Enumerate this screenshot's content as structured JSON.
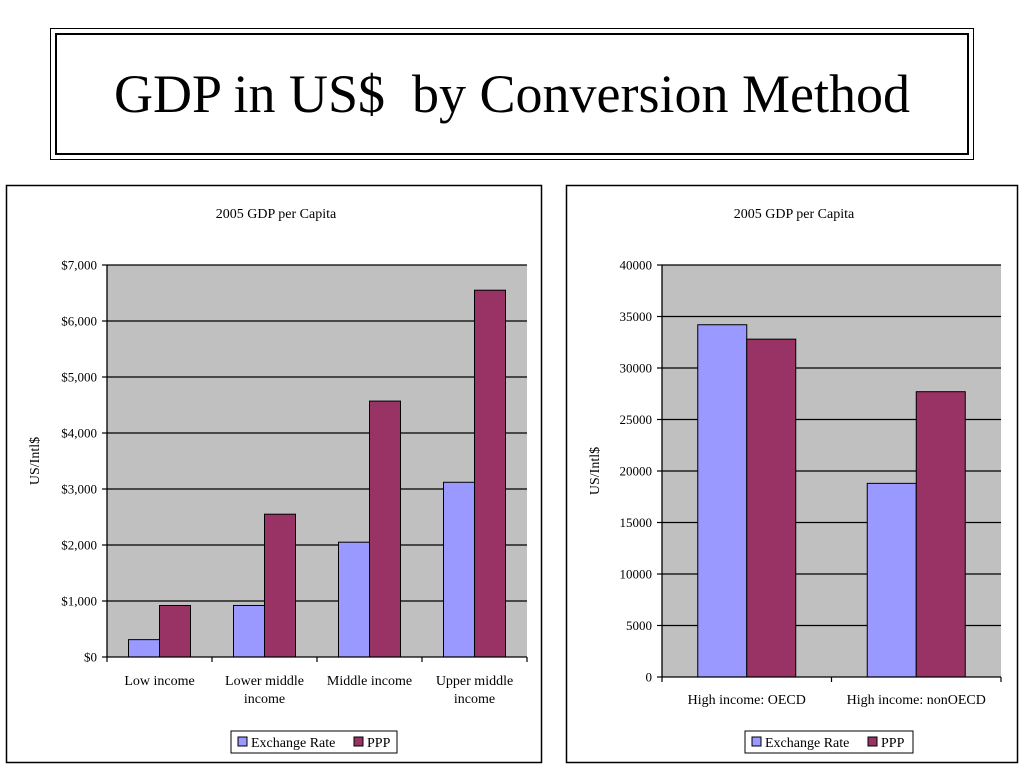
{
  "slide": {
    "title": "GDP in US$  by Conversion Method"
  },
  "colors": {
    "exchange_rate": "#9999ff",
    "ppp": "#993366",
    "plot_bg": "#c0c0c0"
  },
  "chart_data": [
    {
      "type": "bar",
      "title": "2005 GDP per Capita",
      "xlabel": "",
      "ylabel": "US/Intl$",
      "categories": [
        [
          "Low income"
        ],
        [
          "Lower middle",
          "income"
        ],
        [
          "Middle income"
        ],
        [
          "Upper middle",
          "income"
        ]
      ],
      "series": [
        {
          "name": "Exchange Rate",
          "values": [
            310,
            920,
            2050,
            3120
          ]
        },
        {
          "name": "PPP",
          "values": [
            920,
            2550,
            4570,
            6550
          ]
        }
      ],
      "ylim": [
        0,
        7000
      ],
      "yticks": [
        0,
        1000,
        2000,
        3000,
        4000,
        5000,
        6000,
        7000
      ],
      "ytick_labels": [
        "$0",
        "$1,000",
        "$2,000",
        "$3,000",
        "$4,000",
        "$5,000",
        "$6,000",
        "$7,000"
      ],
      "grid": true,
      "legend": "bottom"
    },
    {
      "type": "bar",
      "title": "2005 GDP per Capita",
      "xlabel": "",
      "ylabel": "US/Intl$",
      "categories": [
        [
          "High income: OECD"
        ],
        [
          "High income: nonOECD"
        ]
      ],
      "series": [
        {
          "name": "Exchange Rate",
          "values": [
            34200,
            18800
          ]
        },
        {
          "name": "PPP",
          "values": [
            32800,
            27700
          ]
        }
      ],
      "ylim": [
        0,
        40000
      ],
      "yticks": [
        0,
        5000,
        10000,
        15000,
        20000,
        25000,
        30000,
        35000,
        40000
      ],
      "ytick_labels": [
        "0",
        "5000",
        "10000",
        "15000",
        "20000",
        "25000",
        "30000",
        "35000",
        "40000"
      ],
      "grid": true,
      "legend": "bottom"
    }
  ]
}
